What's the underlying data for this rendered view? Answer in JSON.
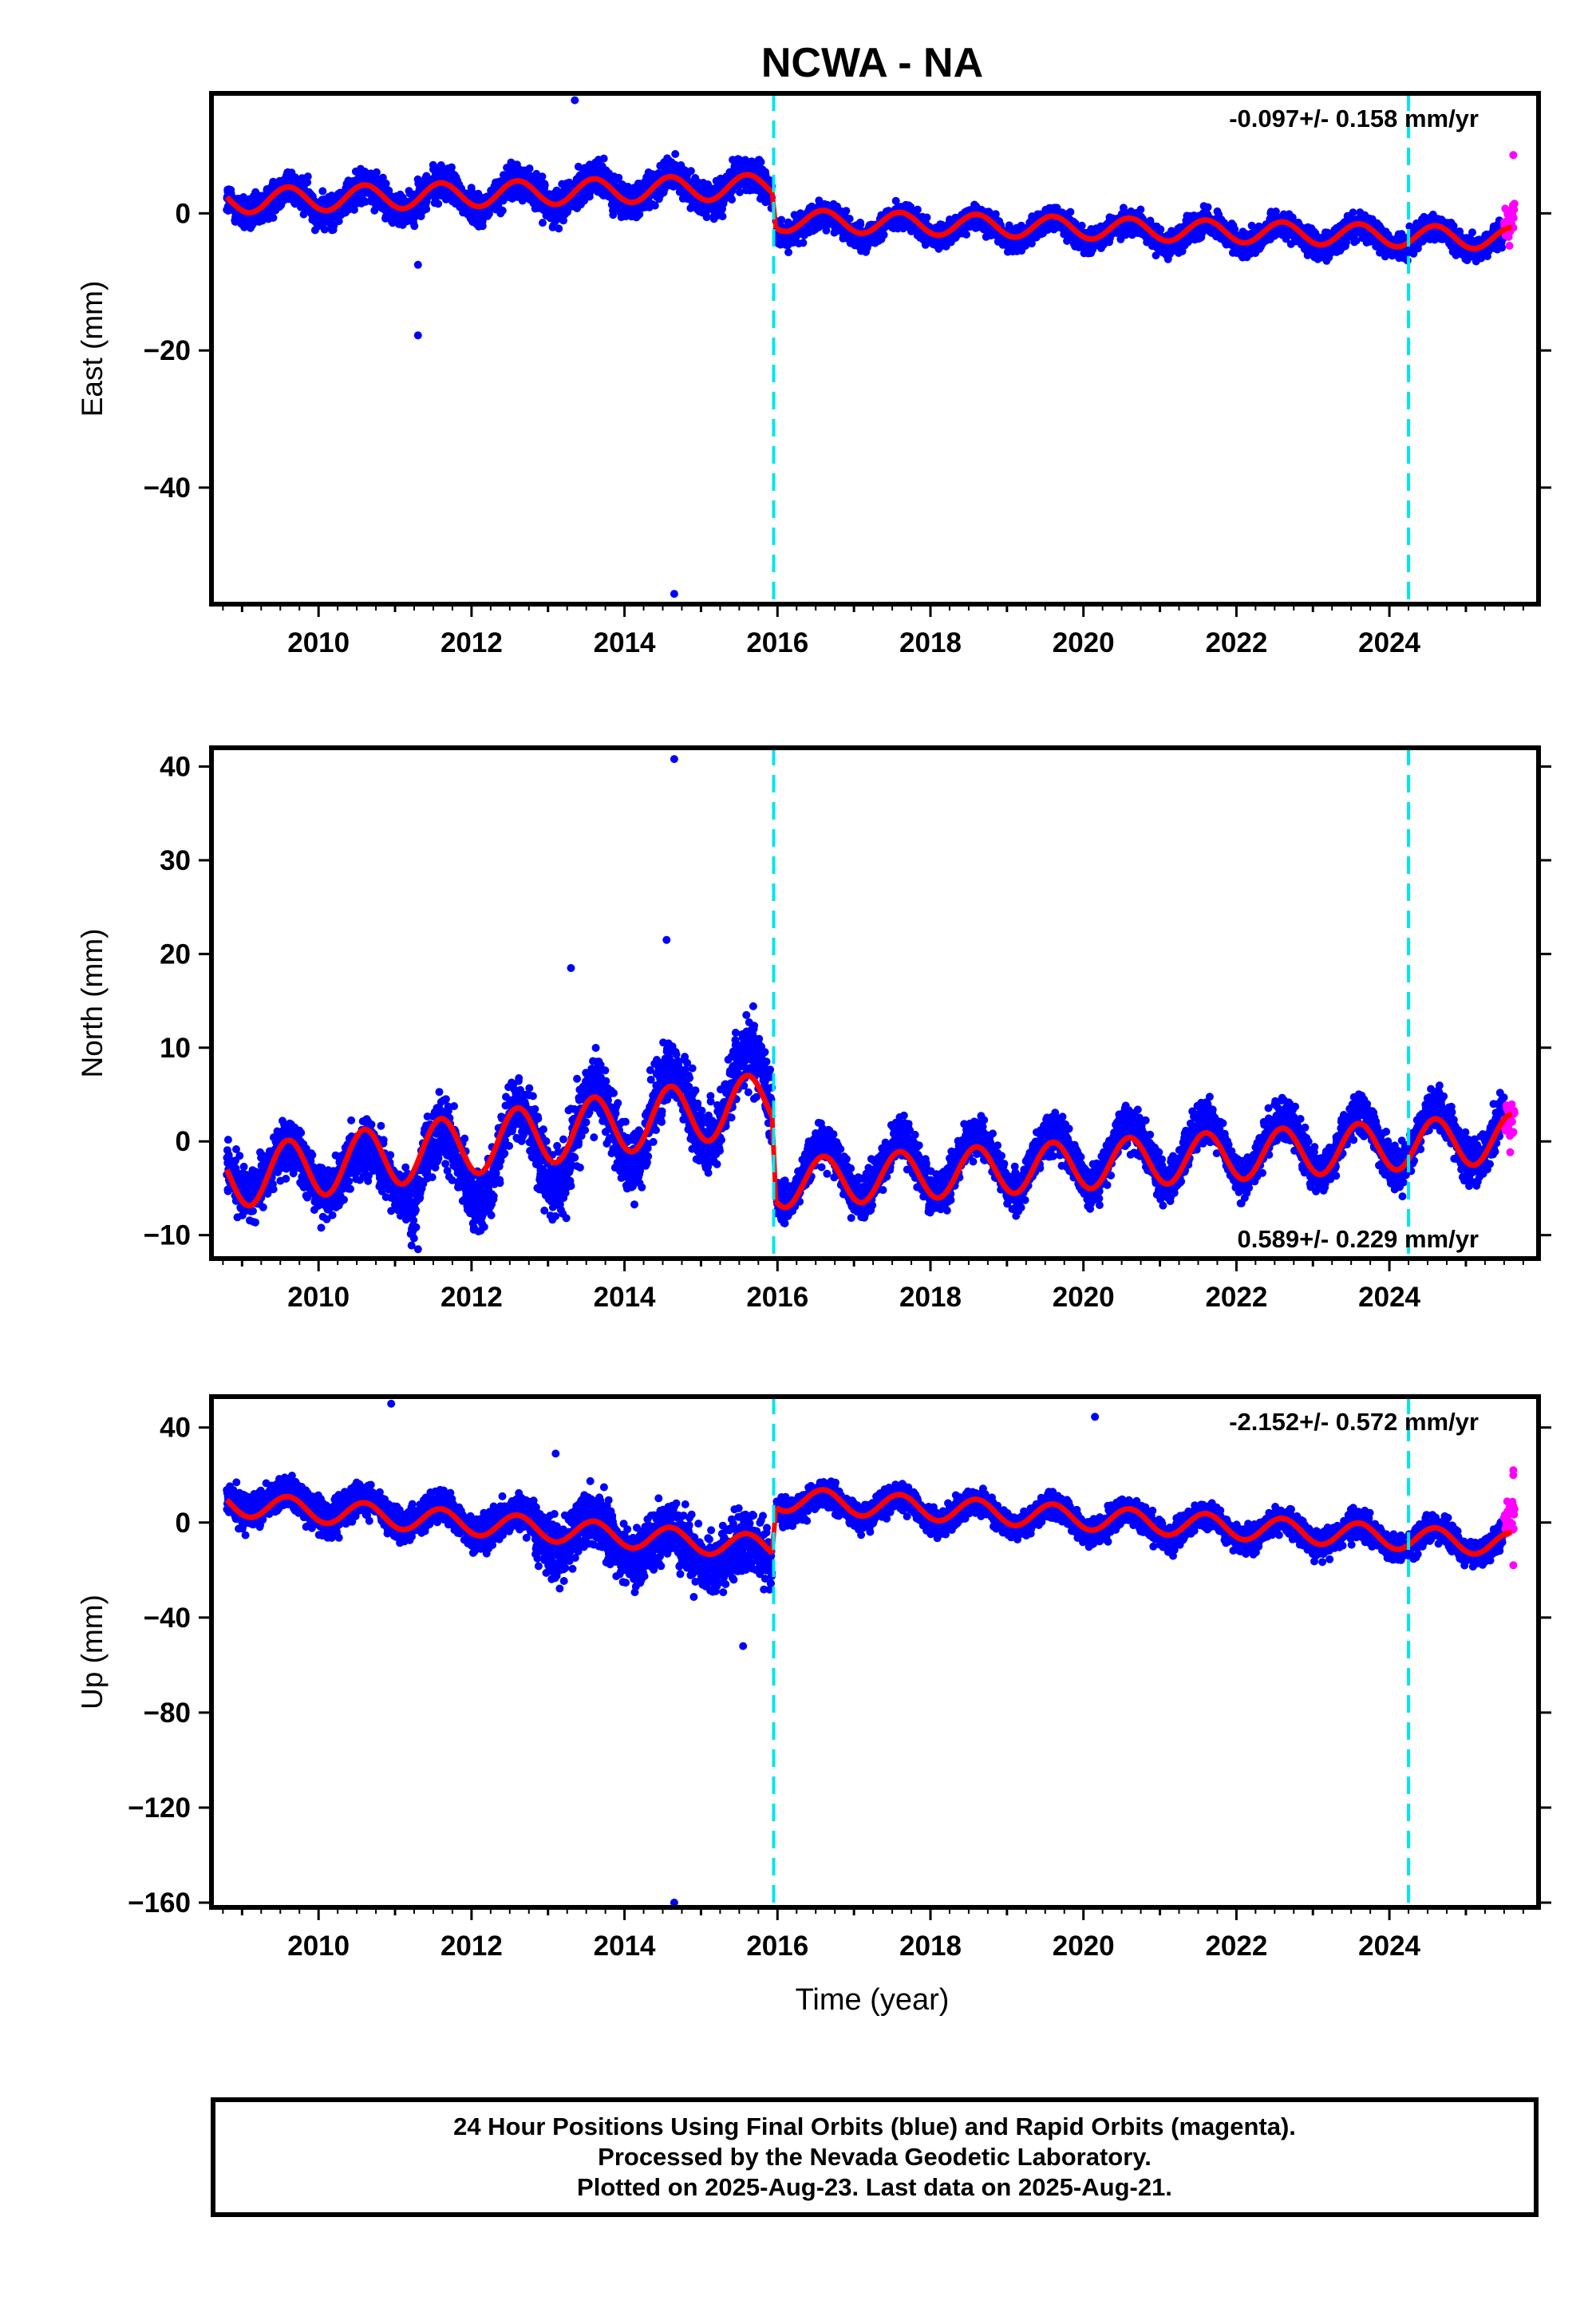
{
  "figure": {
    "title": "NCWA - NA",
    "xlabel": "Time (year)",
    "caption": [
      "24 Hour Positions Using Final Orbits (blue) and Rapid Orbits (magenta).",
      "Processed by the Nevada Geodetic Laboratory.",
      "Plotted on 2025-Aug-23. Last data on 2025-Aug-21."
    ]
  },
  "colors": {
    "final_orbits": "#0000ff",
    "rapid_orbits": "#ff00ff",
    "model_fit": "#ff0000",
    "equipment_change": "#00e5ee",
    "axes": "#000000"
  },
  "chart_data": [
    {
      "type": "scatter",
      "ylabel": "East (mm)",
      "xlim": [
        2008.6,
        2025.95
      ],
      "ylim": [
        -57,
        17.5
      ],
      "xticks": [
        2010,
        2012,
        2014,
        2016,
        2018,
        2020,
        2022,
        2024
      ],
      "xtick_labels": [
        "2010",
        "2012",
        "2014",
        "2016",
        "2018",
        "2020",
        "2022",
        "2024"
      ],
      "yticks": [
        0,
        -20,
        -40
      ],
      "ytick_labels": [
        "0",
        "−20",
        "−40"
      ],
      "rate_label": "-0.097+/- 0.158 mm/yr",
      "rate_position": "top-right",
      "grid": false,
      "breaks": [
        2015.95,
        2024.25
      ],
      "series": [
        {
          "name": "Final Orbits",
          "role": "final",
          "segments": [
            {
              "x0": 2008.8,
              "x1": 2015.93,
              "base": 1.5,
              "trend": 0.35,
              "amp": 2.0,
              "noise": 2.0
            },
            {
              "x0": 2015.98,
              "x1": 2025.5,
              "base": -1.5,
              "trend": -0.25,
              "amp": 1.6,
              "noise": 1.5
            }
          ]
        },
        {
          "name": "Rapid Orbits",
          "role": "rapid",
          "x0": 2025.5,
          "x1": 2025.64,
          "center": -1.0,
          "spread": 3.0,
          "extra": [
            8.5
          ]
        },
        {
          "name": "Model",
          "role": "model",
          "segments": [
            {
              "x0": 2008.8,
              "x1": 2015.93,
              "base": 1.8,
              "trend": 0.3,
              "amp": 1.8
            },
            {
              "x0": 2015.98,
              "x1": 2025.6,
              "base": -1.0,
              "trend": -0.28,
              "amp": 1.6
            }
          ]
        }
      ],
      "outliers": [
        [
          2013.35,
          16.5
        ],
        [
          2014.65,
          -55.5
        ],
        [
          2011.3,
          -17.8
        ],
        [
          2011.3,
          -7.5
        ]
      ]
    },
    {
      "type": "scatter",
      "ylabel": "North (mm)",
      "xlim": [
        2008.6,
        2025.95
      ],
      "ylim": [
        -12.5,
        42
      ],
      "xticks": [
        2010,
        2012,
        2014,
        2016,
        2018,
        2020,
        2022,
        2024
      ],
      "xtick_labels": [
        "2010",
        "2012",
        "2014",
        "2016",
        "2018",
        "2020",
        "2022",
        "2024"
      ],
      "yticks": [
        40,
        30,
        20,
        10,
        0,
        -10
      ],
      "ytick_labels": [
        "40",
        "30",
        "20",
        "10",
        "0",
        "−10"
      ],
      "rate_label": "0.589+/- 0.229 mm/yr",
      "rate_position": "bottom-right",
      "grid": false,
      "breaks": [
        2015.95,
        2024.25
      ],
      "series": [
        {
          "name": "Final Orbits",
          "role": "final",
          "segments": [
            {
              "x0": 2008.8,
              "x1": 2011.2,
              "base": -3.0,
              "trend": 0.0,
              "amp": 2.5,
              "noise": 2.3
            },
            {
              "x0": 2011.2,
              "x1": 2015.93,
              "base": -4.0,
              "trend": 2.1,
              "amp": 4.5,
              "noise": 3.0
            },
            {
              "x0": 2015.98,
              "x1": 2025.5,
              "base": -3.5,
              "trend": 0.45,
              "amp": 3.0,
              "noise": 1.8
            }
          ]
        },
        {
          "name": "Rapid Orbits",
          "role": "rapid",
          "x0": 2025.5,
          "x1": 2025.64,
          "center": 1.5,
          "spread": 3.0,
          "extra": []
        },
        {
          "name": "Model",
          "role": "model",
          "segments": [
            {
              "x0": 2008.8,
              "x1": 2015.93,
              "base": -4.0,
              "trend": 1.15,
              "amp": 3.2
            },
            {
              "x0": 2015.98,
              "x1": 2025.6,
              "base": -4.5,
              "trend": 0.5,
              "amp": 2.6
            }
          ]
        }
      ],
      "outliers": [
        [
          2014.65,
          40.8
        ],
        [
          2014.55,
          21.5
        ],
        [
          2011.3,
          -11.5
        ],
        [
          2013.3,
          18.5
        ]
      ]
    },
    {
      "type": "scatter",
      "ylabel": "Up (mm)",
      "xlim": [
        2008.6,
        2025.95
      ],
      "ylim": [
        -162,
        53
      ],
      "xticks": [
        2010,
        2012,
        2014,
        2016,
        2018,
        2020,
        2022,
        2024
      ],
      "xtick_labels": [
        "2010",
        "2012",
        "2014",
        "2016",
        "2018",
        "2020",
        "2022",
        "2024"
      ],
      "yticks": [
        40,
        0,
        -40,
        -80,
        -120,
        -160
      ],
      "ytick_labels": [
        "40",
        "0",
        "−40",
        "−80",
        "−120",
        "−160"
      ],
      "rate_label": "-2.152+/- 0.572 mm/yr",
      "rate_position": "top-right",
      "grid": false,
      "breaks": [
        2015.95,
        2024.25
      ],
      "series": [
        {
          "name": "Final Orbits",
          "role": "final",
          "segments": [
            {
              "x0": 2008.8,
              "x1": 2012.8,
              "base": 10.0,
              "trend": -2.8,
              "amp": 5.0,
              "noise": 6.0
            },
            {
              "x0": 2012.8,
              "x1": 2015.93,
              "base": -2.0,
              "trend": -4.5,
              "amp": 7.0,
              "noise": 10.0
            },
            {
              "x0": 2015.98,
              "x1": 2025.5,
              "base": 9.0,
              "trend": -1.9,
              "amp": 5.0,
              "noise": 4.5
            }
          ]
        },
        {
          "name": "Rapid Orbits",
          "role": "rapid",
          "x0": 2025.5,
          "x1": 2025.64,
          "center": 3.0,
          "spread": 11.0,
          "extra": [
            22.0,
            20.0,
            -18.0
          ]
        },
        {
          "name": "Model",
          "role": "model",
          "segments": [
            {
              "x0": 2008.8,
              "x1": 2015.93,
              "base": 8.0,
              "trend": -2.6,
              "amp": 5.0
            },
            {
              "x0": 2015.98,
              "x1": 2025.6,
              "base": 10.0,
              "trend": -2.0,
              "amp": 5.0
            }
          ]
        }
      ],
      "outliers": [
        [
          2010.95,
          50.0
        ],
        [
          2013.1,
          29.0
        ],
        [
          2014.65,
          -160.0
        ],
        [
          2020.15,
          44.5
        ],
        [
          2015.55,
          -52.0
        ]
      ]
    }
  ]
}
